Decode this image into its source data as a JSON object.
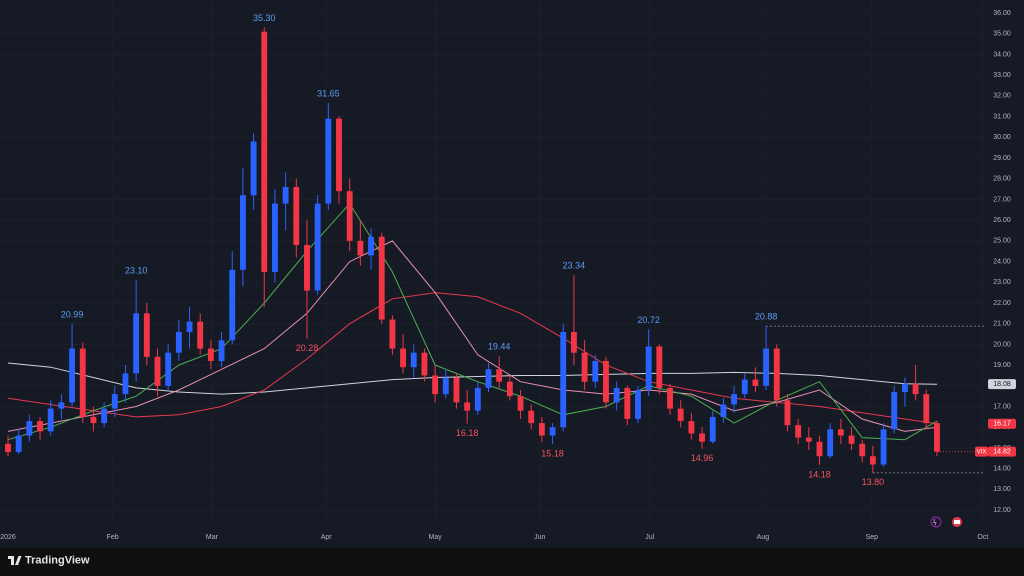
{
  "chart_data": {
    "type": "candlestick",
    "symbol": "VIX",
    "brand": "TradingView",
    "up_color": "#2962ff",
    "down_color": "#f23645",
    "grid": true,
    "xlim": [
      -0.75,
      91.5
    ],
    "ylim": [
      11.28,
      36.63
    ],
    "xticks": [
      {
        "value": 0,
        "label": "2026"
      },
      {
        "value": 9.8,
        "label": "Feb"
      },
      {
        "value": 19.1,
        "label": "Mar"
      },
      {
        "value": 29.8,
        "label": "Apr"
      },
      {
        "value": 40,
        "label": "May"
      },
      {
        "value": 49.8,
        "label": "Jun"
      },
      {
        "value": 60.1,
        "label": "Jul"
      },
      {
        "value": 70.7,
        "label": "Aug"
      },
      {
        "value": 80.9,
        "label": "Sep"
      },
      {
        "value": 91.3,
        "label": "Oct"
      }
    ],
    "yticks": [
      {
        "value": 12,
        "label": "12.00"
      },
      {
        "value": 13,
        "label": "13.00"
      },
      {
        "value": 14,
        "label": "14.00"
      },
      {
        "value": 15,
        "label": "15.00"
      },
      {
        "value": 16,
        "label": "16.00"
      },
      {
        "value": 17,
        "label": "17.00"
      },
      {
        "value": 18,
        "label": "18.00"
      },
      {
        "value": 19,
        "label": "19.00"
      },
      {
        "value": 20,
        "label": "20.00"
      },
      {
        "value": 21,
        "label": "21.00"
      },
      {
        "value": 22,
        "label": "22.00"
      },
      {
        "value": 23,
        "label": "23.00"
      },
      {
        "value": 24,
        "label": "24.00"
      },
      {
        "value": 25,
        "label": "25.00"
      },
      {
        "value": 26,
        "label": "26.00"
      },
      {
        "value": 27,
        "label": "27.00"
      },
      {
        "value": 28,
        "label": "28.00"
      },
      {
        "value": 29,
        "label": "29.00"
      },
      {
        "value": 30,
        "label": "30.00"
      },
      {
        "value": 31,
        "label": "31.00"
      },
      {
        "value": 32,
        "label": "32.00"
      },
      {
        "value": 33,
        "label": "33.00"
      },
      {
        "value": 34,
        "label": "34.00"
      },
      {
        "value": 35,
        "label": "35.00"
      },
      {
        "value": 36,
        "label": "36.00"
      }
    ],
    "open": [
      15.2,
      14.8,
      15.6,
      16.3,
      15.8,
      16.9,
      17.2,
      19.8,
      16.5,
      16.2,
      16.9,
      17.6,
      18.6,
      21.5,
      19.4,
      18.0,
      19.6,
      20.6,
      21.1,
      19.8,
      19.2,
      20.2,
      23.6,
      27.2,
      35.1,
      23.5,
      26.8,
      27.6,
      24.8,
      22.6,
      26.8,
      30.9,
      27.4,
      25.0,
      24.3,
      25.2,
      21.2,
      19.8,
      18.9,
      19.6,
      18.5,
      17.6,
      18.4,
      17.2,
      16.8,
      17.9,
      18.8,
      18.2,
      17.5,
      16.8,
      16.2,
      15.6,
      16.0,
      20.6,
      19.6,
      18.2,
      19.2,
      17.2,
      17.9,
      16.4,
      17.8,
      19.9,
      17.9,
      16.9,
      16.3,
      15.7,
      15.3,
      16.5,
      17.1,
      17.6,
      18.3,
      18.0,
      19.8,
      17.3,
      16.1,
      15.5,
      15.3,
      14.6,
      15.9,
      15.6,
      15.2,
      14.6,
      14.2,
      15.9,
      17.7,
      18.1,
      17.6,
      16.2
    ],
    "high": [
      15.6,
      15.9,
      16.6,
      16.5,
      17.3,
      17.6,
      20.99,
      20.1,
      17.0,
      17.2,
      18.0,
      19.0,
      23.1,
      22.0,
      19.8,
      20.0,
      21.2,
      21.8,
      21.5,
      20.2,
      20.6,
      24.5,
      28.5,
      30.2,
      35.3,
      27.5,
      28.3,
      28.0,
      26.0,
      27.2,
      31.65,
      31.0,
      28.0,
      26.0,
      25.6,
      25.4,
      21.4,
      20.5,
      20.0,
      19.8,
      19.0,
      18.8,
      18.6,
      17.8,
      18.2,
      19.1,
      19.44,
      18.5,
      17.8,
      17.1,
      16.5,
      16.2,
      21.0,
      23.34,
      20.2,
      19.5,
      19.4,
      18.2,
      18.0,
      18.0,
      20.72,
      20.0,
      18.1,
      17.3,
      16.7,
      16.0,
      16.8,
      17.4,
      18.0,
      18.6,
      18.9,
      20.88,
      20.0,
      17.6,
      16.4,
      16.0,
      15.6,
      16.2,
      16.4,
      16.0,
      15.4,
      15.1,
      16.2,
      18.0,
      18.4,
      19.0,
      17.8,
      16.3
    ],
    "low": [
      14.6,
      14.7,
      15.3,
      15.4,
      15.6,
      16.4,
      17.0,
      16.2,
      15.8,
      16.0,
      16.5,
      17.2,
      18.2,
      19.0,
      17.5,
      17.8,
      19.2,
      19.8,
      19.5,
      18.8,
      18.9,
      20.0,
      22.8,
      26.5,
      21.8,
      23.0,
      25.5,
      24.2,
      20.28,
      22.4,
      26.5,
      26.8,
      24.5,
      23.8,
      23.6,
      21.0,
      19.5,
      18.6,
      18.4,
      18.2,
      17.2,
      17.4,
      16.9,
      16.18,
      16.6,
      17.7,
      17.9,
      17.3,
      16.4,
      15.9,
      15.3,
      15.18,
      15.8,
      19.0,
      17.8,
      17.9,
      16.9,
      16.8,
      16.1,
      16.2,
      17.5,
      17.6,
      16.6,
      16.0,
      15.4,
      14.96,
      15.2,
      16.2,
      16.7,
      17.4,
      17.7,
      17.8,
      17.0,
      15.8,
      15.2,
      14.9,
      14.18,
      14.5,
      15.2,
      14.9,
      14.3,
      13.8,
      14.1,
      15.7,
      17.0,
      17.3,
      15.9,
      14.6
    ],
    "close": [
      14.8,
      15.6,
      16.3,
      15.8,
      16.9,
      17.2,
      19.8,
      16.5,
      16.2,
      16.9,
      17.6,
      18.6,
      21.5,
      19.4,
      18.0,
      19.6,
      20.6,
      21.1,
      19.8,
      19.2,
      20.2,
      23.6,
      27.2,
      29.8,
      23.5,
      26.8,
      27.6,
      24.8,
      22.6,
      26.8,
      30.9,
      27.4,
      25.0,
      24.3,
      25.2,
      21.2,
      19.8,
      18.9,
      19.6,
      18.5,
      17.6,
      18.4,
      17.2,
      16.8,
      17.9,
      18.8,
      18.2,
      17.5,
      16.8,
      16.2,
      15.6,
      16.0,
      20.6,
      19.6,
      18.2,
      19.2,
      17.2,
      17.9,
      16.4,
      17.8,
      19.9,
      17.9,
      16.9,
      16.3,
      15.7,
      15.3,
      16.5,
      17.1,
      17.6,
      18.3,
      18.0,
      19.8,
      17.3,
      16.1,
      15.5,
      15.3,
      14.6,
      15.9,
      15.6,
      15.2,
      14.6,
      14.2,
      15.9,
      17.7,
      18.1,
      17.6,
      16.2,
      14.82
    ],
    "ma_lines": [
      {
        "color": "#d1d4dc",
        "x": [
          0,
          4,
          8,
          12,
          16,
          20,
          24,
          28,
          32,
          36,
          40,
          44,
          48,
          52,
          56,
          60,
          64,
          68,
          72,
          76,
          80,
          84,
          87
        ],
        "values": [
          19.1,
          18.9,
          18.4,
          17.9,
          17.7,
          17.6,
          17.7,
          17.9,
          18.1,
          18.3,
          18.4,
          18.45,
          18.5,
          18.5,
          18.55,
          18.6,
          18.6,
          18.65,
          18.6,
          18.5,
          18.3,
          18.1,
          18.08
        ]
      },
      {
        "color": "#e53950",
        "x": [
          0,
          4,
          8,
          12,
          16,
          20,
          24,
          28,
          32,
          36,
          40,
          44,
          48,
          52,
          56,
          60,
          64,
          68,
          72,
          76,
          80,
          84,
          87
        ],
        "values": [
          17.4,
          17.1,
          16.8,
          16.5,
          16.6,
          17.0,
          17.8,
          19.3,
          21.0,
          22.2,
          22.5,
          22.3,
          21.5,
          20.3,
          19.0,
          18.2,
          17.8,
          17.4,
          17.2,
          17.0,
          16.7,
          16.4,
          16.17
        ]
      },
      {
        "color": "#e98fb2",
        "x": [
          0,
          4,
          8,
          12,
          16,
          20,
          24,
          28,
          32,
          36,
          40,
          44,
          48,
          52,
          56,
          60,
          64,
          68,
          72,
          76,
          80,
          84,
          87
        ],
        "values": [
          15.8,
          16.2,
          16.6,
          17.0,
          17.8,
          18.8,
          19.8,
          21.5,
          24.0,
          25.0,
          22.5,
          19.5,
          18.2,
          17.8,
          17.6,
          17.8,
          17.6,
          16.8,
          17.2,
          17.8,
          16.4,
          15.8,
          16.0
        ]
      },
      {
        "color": "#4caf50",
        "x": [
          0,
          4,
          8,
          12,
          16,
          20,
          24,
          28,
          32,
          36,
          40,
          44,
          48,
          52,
          56,
          60,
          64,
          68,
          72,
          76,
          80,
          84,
          87
        ],
        "values": [
          15.4,
          16.0,
          16.8,
          17.5,
          19.0,
          19.8,
          22.0,
          24.5,
          26.8,
          23.5,
          19.0,
          18.2,
          17.5,
          16.6,
          17.0,
          18.0,
          17.5,
          16.2,
          17.3,
          18.2,
          15.5,
          15.4,
          16.3
        ]
      }
    ],
    "high_labels": [
      {
        "x": 6,
        "value": 20.99,
        "label": "20.99"
      },
      {
        "x": 12,
        "value": 23.1,
        "label": "23.10"
      },
      {
        "x": 24,
        "value": 35.3,
        "label": "35.30"
      },
      {
        "x": 30,
        "value": 31.65,
        "label": "31.65"
      },
      {
        "x": 46,
        "value": 19.44,
        "label": "19.44"
      },
      {
        "x": 53,
        "value": 23.34,
        "label": "23.34"
      },
      {
        "x": 60,
        "value": 20.72,
        "label": "20.72"
      },
      {
        "x": 71,
        "value": 20.88,
        "label": "20.88",
        "line": true
      }
    ],
    "low_labels": [
      {
        "x": 28,
        "value": 20.28,
        "label": "20.28"
      },
      {
        "x": 43,
        "value": 16.18,
        "label": "16.18"
      },
      {
        "x": 51,
        "value": 15.18,
        "label": "15.18"
      },
      {
        "x": 65,
        "value": 14.96,
        "label": "14.96"
      },
      {
        "x": 76,
        "value": 14.18,
        "label": "14.18"
      },
      {
        "x": 81,
        "value": 13.8,
        "label": "13.80",
        "line": true
      }
    ]
  }
}
